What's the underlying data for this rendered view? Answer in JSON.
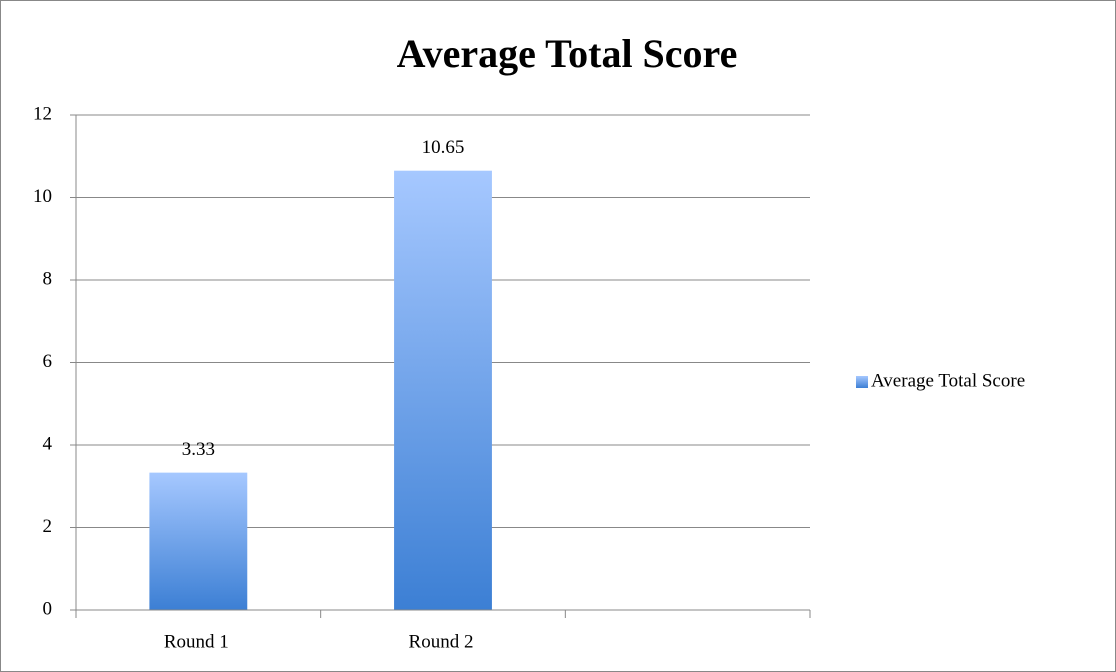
{
  "chart_data": {
    "type": "bar",
    "title": "Average Total Score",
    "categories": [
      "Round 1",
      "Round 2",
      null
    ],
    "series": [
      {
        "name": "Average Total Score",
        "color": "#3c7fd4",
        "values": [
          3.33,
          10.65,
          null
        ]
      }
    ],
    "ylim": [
      0,
      12
    ],
    "yticks": [
      0,
      2,
      4,
      6,
      8,
      10,
      12
    ],
    "grid": true,
    "legend": "right"
  }
}
